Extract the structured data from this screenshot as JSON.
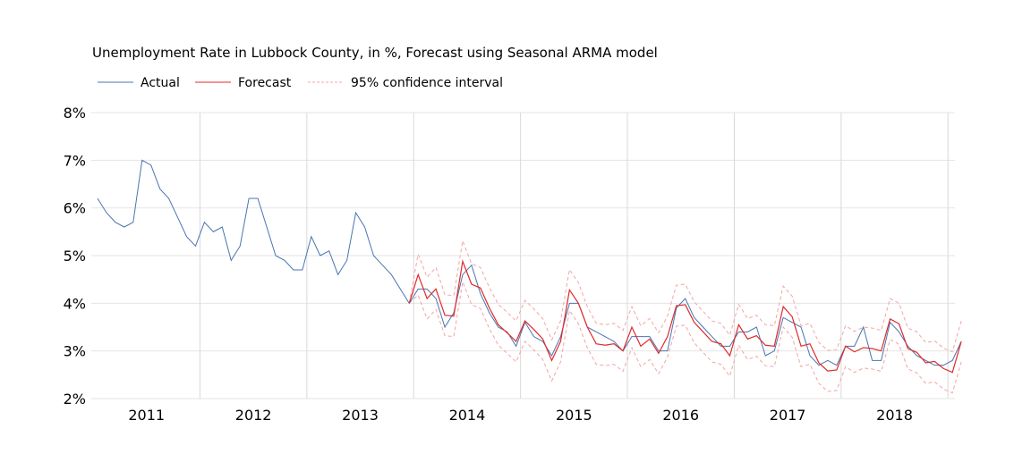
{
  "chart_data": {
    "type": "line",
    "title": "Unemployment Rate in Lubbock County, in %, Forecast using Seasonal ARMA model",
    "xlabel": "",
    "ylabel": "",
    "ylim": [
      2,
      8
    ],
    "yticks": [
      "2%",
      "3%",
      "4%",
      "5%",
      "6%",
      "7%",
      "8%"
    ],
    "ytick_values": [
      2,
      3,
      4,
      5,
      6,
      7,
      8
    ],
    "xticks": [
      "2011",
      "2012",
      "2013",
      "2014",
      "2015",
      "2016",
      "2017",
      "2018"
    ],
    "x_start": "2011-01",
    "grid": true,
    "legend": "top-left",
    "colors": {
      "actual": "#4a74b0",
      "forecast": "#e02a2a",
      "ci": "#f4a4a4",
      "grid": "#e6e6e6",
      "vgrid": "#d9d9d9"
    },
    "series": [
      {
        "name": "Actual",
        "start_index": 0,
        "values": [
          6.2,
          5.9,
          5.7,
          5.6,
          5.7,
          7.0,
          6.9,
          6.4,
          6.2,
          5.8,
          5.4,
          5.2,
          5.7,
          5.5,
          5.6,
          4.9,
          5.2,
          6.2,
          6.2,
          5.6,
          5.0,
          4.9,
          4.7,
          4.7,
          5.4,
          5.0,
          5.1,
          4.6,
          4.9,
          5.9,
          5.6,
          5.0,
          4.8,
          4.6,
          4.3,
          4.0,
          4.3,
          4.3,
          4.1,
          3.5,
          3.8,
          4.6,
          4.8,
          4.2,
          3.8,
          3.5,
          3.4,
          3.1,
          3.6,
          3.3,
          3.2,
          2.9,
          3.3,
          4.0,
          4.0,
          3.5,
          3.4,
          3.3,
          3.2,
          3.0,
          3.3,
          3.3,
          3.3,
          3.0,
          3.0,
          3.9,
          4.1,
          3.7,
          3.5,
          3.3,
          3.1,
          3.1,
          3.4,
          3.4,
          3.5,
          2.9,
          3.0,
          3.7,
          3.6,
          3.5,
          2.9,
          2.7,
          2.8,
          2.7,
          3.1,
          3.1,
          3.5,
          2.8,
          2.8,
          3.6,
          3.4,
          3.1,
          2.9,
          2.8,
          2.7,
          2.7,
          2.8,
          3.2
        ]
      },
      {
        "name": "Forecast",
        "start_index": 35,
        "values": [
          4.0,
          4.6,
          4.1,
          4.3,
          3.75,
          3.73,
          4.88,
          4.4,
          4.32,
          3.9,
          3.55,
          3.38,
          3.2,
          3.63,
          3.45,
          3.25,
          2.8,
          3.2,
          4.28,
          4.0,
          3.5,
          3.15,
          3.12,
          3.15,
          3.0,
          3.5,
          3.1,
          3.25,
          2.95,
          3.3,
          3.95,
          3.97,
          3.6,
          3.4,
          3.2,
          3.15,
          2.9,
          3.55,
          3.25,
          3.32,
          3.12,
          3.1,
          3.93,
          3.72,
          3.1,
          3.15,
          2.75,
          2.58,
          2.6,
          3.1,
          2.98,
          3.07,
          3.05,
          3.0,
          3.67,
          3.57,
          3.05,
          2.97,
          2.75,
          2.78,
          2.63,
          2.55,
          3.2
        ]
      },
      {
        "name": "95% confidence interval",
        "start_index": 35,
        "upper": [
          4.0,
          5.03,
          4.55,
          4.75,
          4.18,
          4.16,
          5.31,
          4.83,
          4.75,
          4.33,
          3.98,
          3.81,
          3.63,
          4.06,
          3.88,
          3.68,
          3.23,
          3.63,
          4.71,
          4.43,
          3.93,
          3.58,
          3.55,
          3.58,
          3.43,
          3.93,
          3.53,
          3.68,
          3.38,
          3.73,
          4.38,
          4.4,
          4.03,
          3.83,
          3.63,
          3.58,
          3.33,
          3.98,
          3.68,
          3.75,
          3.55,
          3.53,
          4.36,
          4.15,
          3.53,
          3.58,
          3.18,
          3.01,
          3.03,
          3.53,
          3.41,
          3.5,
          3.48,
          3.43,
          4.1,
          4.0,
          3.48,
          3.4,
          3.18,
          3.21,
          3.06,
          2.98,
          3.63
        ],
        "lower": [
          4.0,
          4.17,
          3.67,
          3.87,
          3.32,
          3.3,
          4.45,
          3.97,
          3.89,
          3.47,
          3.12,
          2.95,
          2.77,
          3.2,
          3.02,
          2.82,
          2.37,
          2.77,
          3.85,
          3.57,
          3.07,
          2.72,
          2.69,
          2.72,
          2.57,
          3.07,
          2.67,
          2.82,
          2.52,
          2.87,
          3.52,
          3.54,
          3.17,
          2.97,
          2.77,
          2.72,
          2.47,
          3.12,
          2.82,
          2.89,
          2.69,
          2.67,
          3.5,
          3.29,
          2.67,
          2.72,
          2.32,
          2.15,
          2.17,
          2.67,
          2.55,
          2.64,
          2.62,
          2.57,
          3.24,
          3.14,
          2.62,
          2.54,
          2.32,
          2.35,
          2.2,
          2.12,
          2.77
        ]
      }
    ]
  }
}
